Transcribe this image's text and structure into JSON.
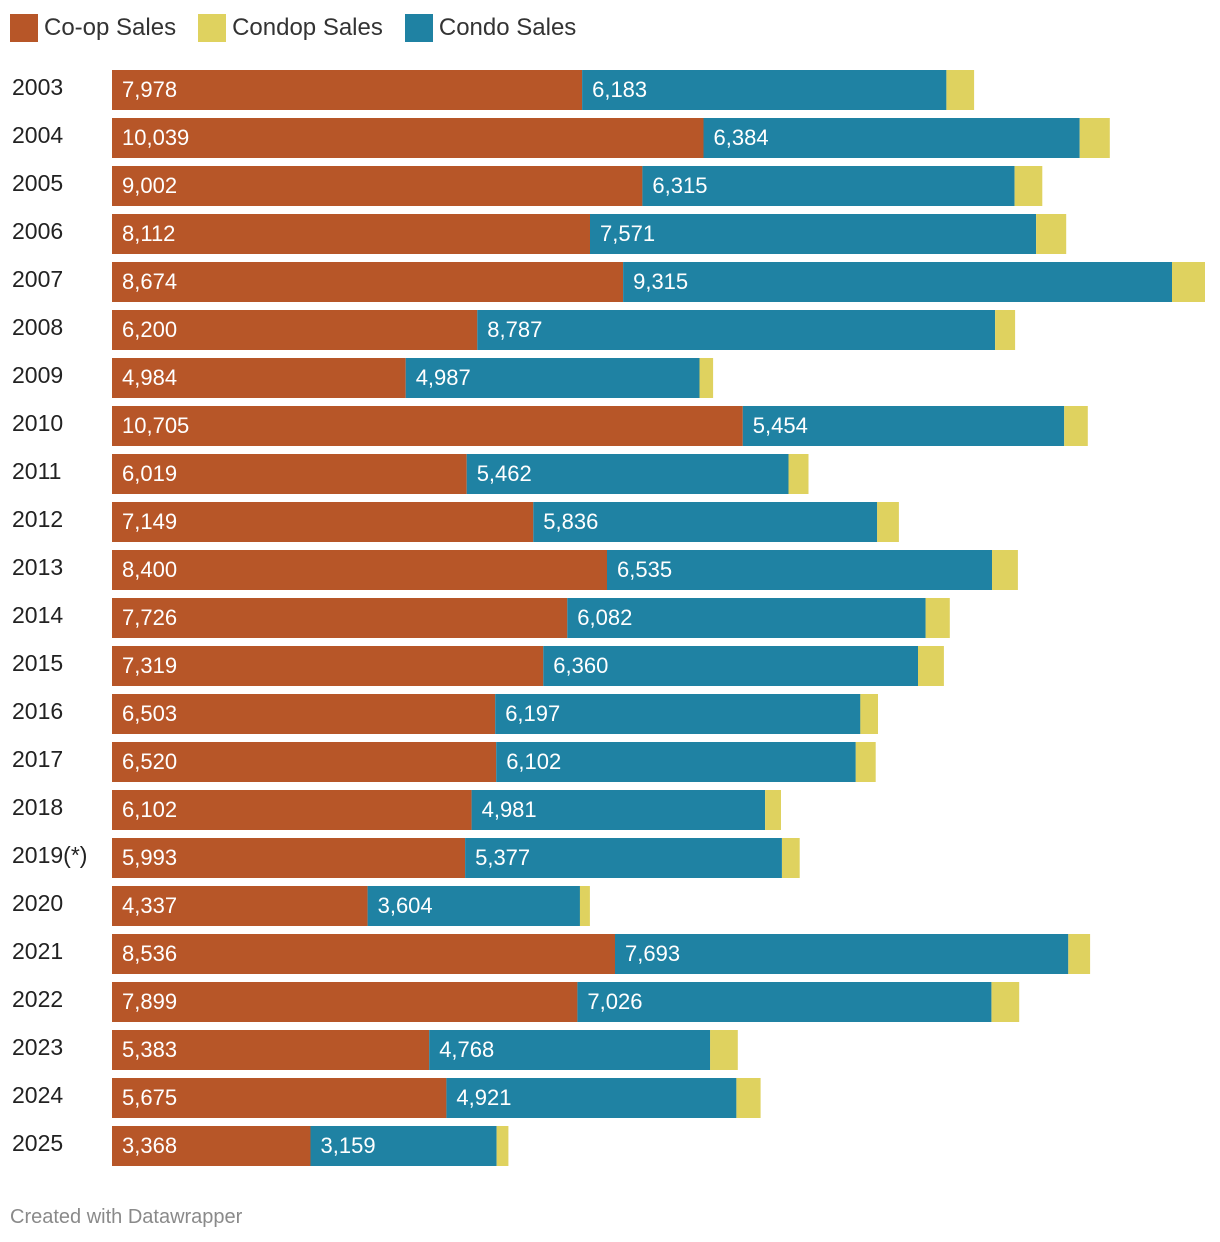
{
  "legend": [
    {
      "label": "Co-op Sales",
      "color": "#b75628"
    },
    {
      "label": "Condop Sales",
      "color": "#dfd25f"
    },
    {
      "label": "Condo Sales",
      "color": "#1f82a3"
    }
  ],
  "footer": "Created with Datawrapper",
  "chart_data": {
    "type": "bar",
    "orientation": "horizontal",
    "stacked": true,
    "categories": [
      "2003",
      "2004",
      "2005",
      "2006",
      "2007",
      "2008",
      "2009",
      "2010",
      "2011",
      "2012",
      "2013",
      "2014",
      "2015",
      "2016",
      "2017",
      "2018",
      "2019(*)",
      "2020",
      "2021",
      "2022",
      "2023",
      "2024",
      "2025"
    ],
    "series": [
      {
        "name": "Co-op Sales",
        "color": "#b75628",
        "labeled": true,
        "values": [
          7978,
          10039,
          9002,
          8112,
          8674,
          6200,
          4984,
          10705,
          6019,
          7149,
          8400,
          7726,
          7319,
          6503,
          6520,
          6102,
          5993,
          4337,
          8536,
          7899,
          5383,
          5675,
          3368
        ],
        "labels": [
          "7,978",
          "10,039",
          "9,002",
          "8,112",
          "8,674",
          "6,200",
          "4,984",
          "10,705",
          "6,019",
          "7,149",
          "8,400",
          "7,726",
          "7,319",
          "6,503",
          "6,520",
          "6,102",
          "5,993",
          "4,337",
          "8,536",
          "7,899",
          "5,383",
          "5,675",
          "3,368"
        ]
      },
      {
        "name": "Condo Sales",
        "color": "#1f82a3",
        "labeled": true,
        "values": [
          6183,
          6384,
          6315,
          7571,
          9315,
          8787,
          4987,
          5454,
          5462,
          5836,
          6535,
          6082,
          6360,
          6197,
          6102,
          4981,
          5377,
          3604,
          7693,
          7026,
          4768,
          4921,
          3159
        ],
        "labels": [
          "6,183",
          "6,384",
          "6,315",
          "7,571",
          "9,315",
          "8,787",
          "4,987",
          "5,454",
          "5,462",
          "5,836",
          "6,535",
          "6,082",
          "6,360",
          "6,197",
          "6,102",
          "4,981",
          "5,377",
          "3,604",
          "7,693",
          "7,026",
          "4,768",
          "4,921",
          "3,159"
        ]
      },
      {
        "name": "Condop Sales",
        "color": "#dfd25f",
        "labeled": false,
        "values": [
          470,
          510,
          470,
          510,
          560,
          340,
          230,
          400,
          340,
          370,
          440,
          410,
          440,
          300,
          340,
          270,
          300,
          170,
          370,
          470,
          470,
          410,
          200
        ]
      }
    ],
    "xlim": [
      0,
      18600
    ],
    "grid": false,
    "legend_position": "top-left"
  }
}
